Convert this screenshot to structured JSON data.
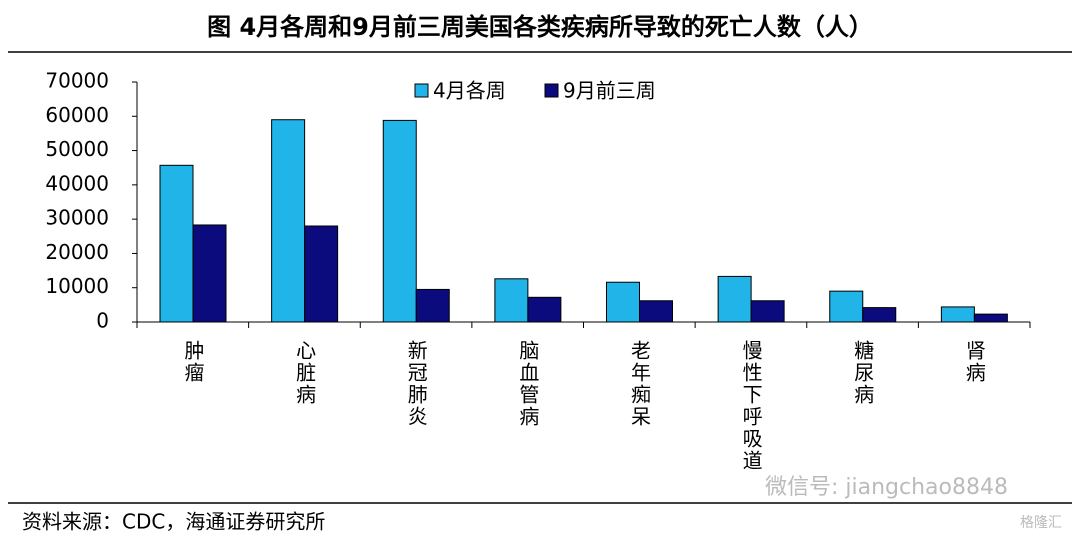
{
  "chart_data": {
    "type": "bar",
    "title": "图  4月各周和9月前三周美国各类疾病所导致的死亡人数（人）",
    "source": "资料来源：CDC，海通证券研究所",
    "watermark": "微信号: jiangchao8848",
    "logo": "格隆汇",
    "categories": [
      "肿瘤",
      "心脏病",
      "新冠肺炎",
      "脑血管病",
      "老年痴呆",
      "慢性下呼吸道",
      "糖尿病",
      "肾病"
    ],
    "series": [
      {
        "name": "4月各周",
        "color": "#21b4e9",
        "values": [
          45700,
          59000,
          58800,
          12600,
          11600,
          13300,
          9000,
          4400
        ]
      },
      {
        "name": "9月前三周",
        "color": "#0b0b7e",
        "values": [
          28300,
          28000,
          9500,
          7200,
          6200,
          6200,
          4200,
          2300
        ]
      }
    ],
    "ylim": [
      0,
      70000
    ],
    "yticks": [
      0,
      10000,
      20000,
      30000,
      40000,
      50000,
      60000,
      70000
    ],
    "legend": "top"
  }
}
